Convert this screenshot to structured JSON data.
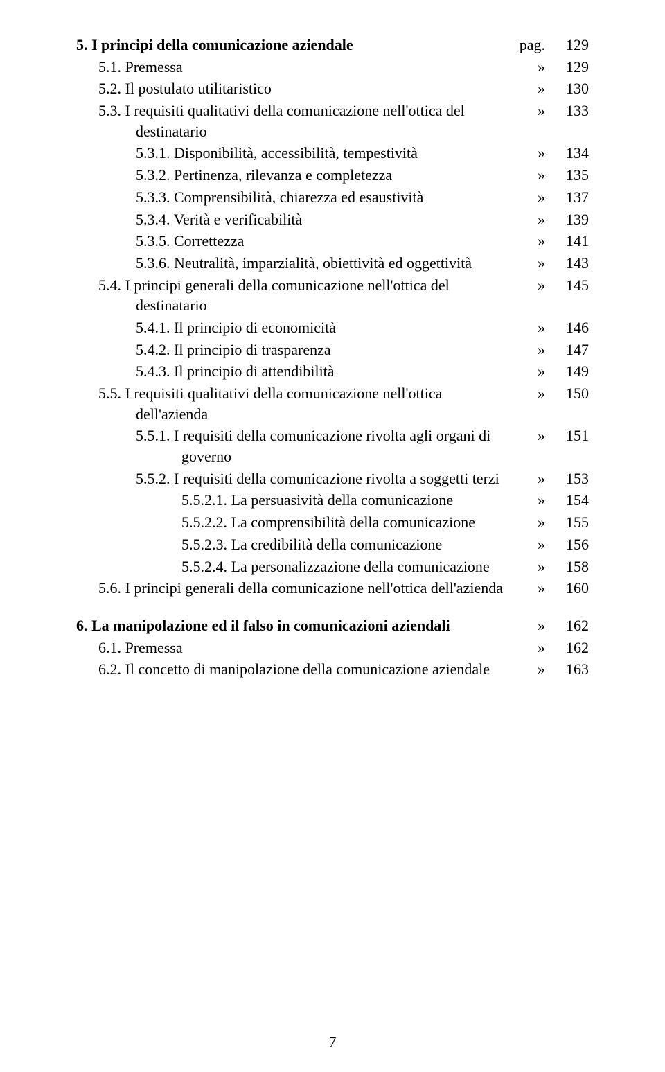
{
  "page_number": "7",
  "sep_pag": "pag.",
  "sep_quote": "»",
  "lines": [
    {
      "indent": "hang-0",
      "bold_prefix": "5. ",
      "bold_rest": "I principi della comunicazione aziendale",
      "sep": "pag.",
      "page": "129"
    },
    {
      "indent": "indent-1",
      "text": "5.1. Premessa",
      "sep": "»",
      "page": "129"
    },
    {
      "indent": "indent-1",
      "text": "5.2. Il postulato utilitaristico",
      "sep": "»",
      "page": "130"
    },
    {
      "indent": "hang-1",
      "text": "5.3. I requisiti qualitativi della comunicazione nell'ottica del destinatario",
      "sep": "»",
      "page": "133"
    },
    {
      "indent": "indent-2",
      "text": "5.3.1. Disponibilità, accessibilità, tempestività",
      "sep": "»",
      "page": "134"
    },
    {
      "indent": "indent-2",
      "text": "5.3.2. Pertinenza, rilevanza e completezza",
      "sep": "»",
      "page": "135"
    },
    {
      "indent": "indent-2",
      "text": "5.3.3. Comprensibilità, chiarezza ed esaustività",
      "sep": "»",
      "page": "137"
    },
    {
      "indent": "indent-2",
      "text": "5.3.4. Verità e verificabilità",
      "sep": "»",
      "page": "139"
    },
    {
      "indent": "indent-2",
      "text": "5.3.5. Correttezza",
      "sep": "»",
      "page": "141"
    },
    {
      "indent": "hang-2",
      "text": "5.3.6. Neutralità, imparzialità, obiettività ed oggettività",
      "sep": "»",
      "page": "143"
    },
    {
      "indent": "hang-1",
      "text": "5.4. I principi generali della comunicazione nell'ottica del destinatario",
      "sep": "»",
      "page": "145"
    },
    {
      "indent": "indent-2",
      "text": "5.4.1. Il principio di economicità",
      "sep": "»",
      "page": "146"
    },
    {
      "indent": "indent-2",
      "text": "5.4.2. Il principio di trasparenza",
      "sep": "»",
      "page": "147"
    },
    {
      "indent": "indent-2",
      "text": "5.4.3. Il principio di attendibilità",
      "sep": "»",
      "page": "149"
    },
    {
      "indent": "hang-1",
      "text": "5.5. I requisiti qualitativi della comunicazione nell'ottica dell'azienda",
      "sep": "»",
      "page": "150"
    },
    {
      "indent": "hang-2",
      "text": "5.5.1. I requisiti della comunicazione rivolta agli organi di governo",
      "sep": "»",
      "page": "151"
    },
    {
      "indent": "hang-2",
      "text": "5.5.2. I requisiti della comunicazione rivolta a soggetti terzi",
      "sep": "»",
      "page": "153"
    },
    {
      "indent": "indent-3",
      "text": "5.5.2.1. La persuasività della comunicazione",
      "sep": "»",
      "page": "154",
      "hang3": true
    },
    {
      "indent": "indent-3",
      "text": "5.5.2.2. La comprensibilità della comunicazione",
      "sep": "»",
      "page": "155",
      "hang3": true
    },
    {
      "indent": "indent-3",
      "text": "5.5.2.3. La credibilità della comunicazione",
      "sep": "»",
      "page": "156"
    },
    {
      "indent": "indent-3",
      "text": "5.5.2.4. La personalizzazione della comunicazione",
      "sep": "»",
      "page": "158",
      "hang3": true
    },
    {
      "indent": "hang-1",
      "text": "5.6. I principi generali della comunicazione nell'ottica dell'azienda",
      "sep": "»",
      "page": "160"
    },
    {
      "spacer": true
    },
    {
      "indent": "hang-0",
      "bold_prefix": "6. ",
      "bold_rest": "La manipolazione ed il falso in comunicazioni aziendali",
      "sep": "»",
      "page": "162"
    },
    {
      "indent": "indent-1",
      "text": "6.1. Premessa",
      "sep": "»",
      "page": "162"
    },
    {
      "indent": "hang-1",
      "text": "6.2. Il concetto di manipolazione della comunicazione aziendale",
      "sep": "»",
      "page": "163"
    }
  ]
}
